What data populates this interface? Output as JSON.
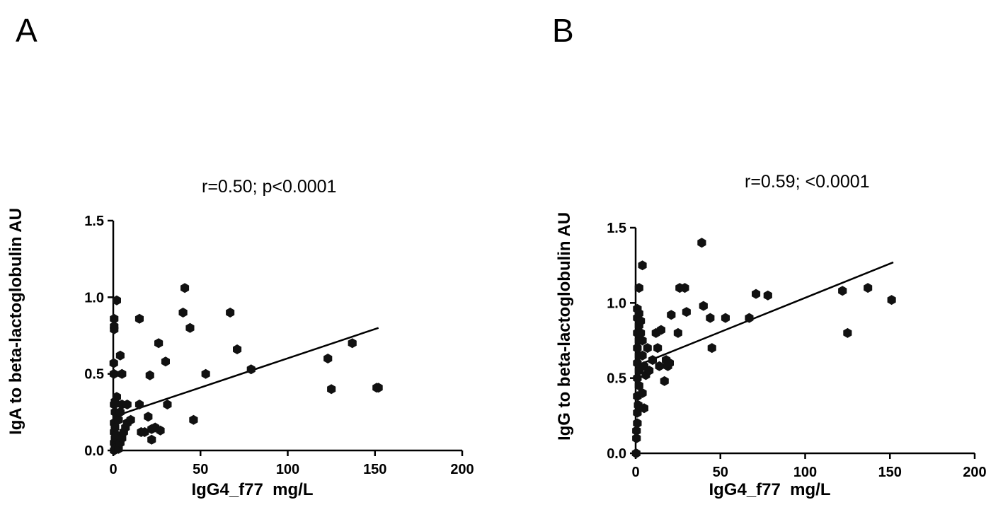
{
  "chart_data": [
    {
      "type": "scatter",
      "panel_label": "A",
      "title": "r=0.50; p<0.0001",
      "xlabel": "IgG4_f77  mg/L",
      "ylabel": "IgA to beta-lactoglobulin AU",
      "xlim": [
        0,
        200
      ],
      "ylim": [
        0,
        1.5
      ],
      "xticks": [
        0,
        50,
        100,
        150,
        200
      ],
      "yticks": [
        0.0,
        0.5,
        1.0,
        1.5
      ],
      "xtick_labels": [
        "0",
        "50",
        "100",
        "150",
        "200"
      ],
      "ytick_labels": [
        "0.0",
        "0.5",
        "1.0",
        "1.5"
      ],
      "regression_line": {
        "x": [
          0,
          152
        ],
        "y": [
          0.22,
          0.8
        ]
      },
      "points": [
        [
          0.5,
          0.86
        ],
        [
          0.5,
          0.81
        ],
        [
          0.5,
          0.79
        ],
        [
          2,
          0.98
        ],
        [
          0.3,
          0.57
        ],
        [
          0.4,
          0.5
        ],
        [
          4,
          0.62
        ],
        [
          5,
          0.5
        ],
        [
          1,
          0.32
        ],
        [
          2,
          0.35
        ],
        [
          0.5,
          0.3
        ],
        [
          1,
          0.25
        ],
        [
          2,
          0.22
        ],
        [
          0.5,
          0.18
        ],
        [
          1,
          0.15
        ],
        [
          0.5,
          0.12
        ],
        [
          2,
          0.1
        ],
        [
          1,
          0.08
        ],
        [
          0.5,
          0.05
        ],
        [
          1,
          0.03
        ],
        [
          2,
          0.02
        ],
        [
          0.5,
          0.0
        ],
        [
          3,
          0.01
        ],
        [
          4,
          0.05
        ],
        [
          5,
          0.08
        ],
        [
          6,
          0.12
        ],
        [
          7,
          0.15
        ],
        [
          3,
          0.2
        ],
        [
          4,
          0.25
        ],
        [
          5,
          0.3
        ],
        [
          8,
          0.3
        ],
        [
          8,
          0.18
        ],
        [
          10,
          0.2
        ],
        [
          15,
          0.3
        ],
        [
          15,
          0.86
        ],
        [
          16,
          0.12
        ],
        [
          18,
          0.12
        ],
        [
          20,
          0.22
        ],
        [
          22,
          0.07
        ],
        [
          22,
          0.14
        ],
        [
          24,
          0.15
        ],
        [
          21,
          0.49
        ],
        [
          26,
          0.7
        ],
        [
          27,
          0.13
        ],
        [
          30,
          0.58
        ],
        [
          31,
          0.3
        ],
        [
          40,
          0.9
        ],
        [
          41,
          1.06
        ],
        [
          44,
          0.8
        ],
        [
          46,
          0.2
        ],
        [
          53,
          0.5
        ],
        [
          67,
          0.9
        ],
        [
          71,
          0.66
        ],
        [
          79,
          0.53
        ],
        [
          123,
          0.6
        ],
        [
          125,
          0.4
        ],
        [
          137,
          0.7
        ],
        [
          151,
          0.41
        ],
        [
          152,
          0.41
        ]
      ]
    },
    {
      "type": "scatter",
      "panel_label": "B",
      "title": "r=0.59; <0.0001",
      "xlabel": "IgG4_f77  mg/L",
      "ylabel": "IgG to beta-lactoglobulin AU",
      "xlim": [
        0,
        200
      ],
      "ylim": [
        0,
        1.5
      ],
      "xticks": [
        0,
        50,
        100,
        150,
        200
      ],
      "yticks": [
        0.0,
        0.5,
        1.0,
        1.5
      ],
      "xtick_labels": [
        "0",
        "50",
        "100",
        "150",
        "200"
      ],
      "ytick_labels": [
        "0.0",
        "0.5",
        "1.0",
        "1.5"
      ],
      "regression_line": {
        "x": [
          0,
          152
        ],
        "y": [
          0.58,
          1.27
        ]
      },
      "points": [
        [
          0.3,
          0.0
        ],
        [
          0.5,
          0.1
        ],
        [
          0.5,
          0.15
        ],
        [
          1,
          0.2
        ],
        [
          1,
          0.27
        ],
        [
          1.5,
          0.32
        ],
        [
          1,
          0.38
        ],
        [
          2,
          0.45
        ],
        [
          1,
          0.5
        ],
        [
          2,
          0.55
        ],
        [
          1,
          0.6
        ],
        [
          2,
          0.65
        ],
        [
          1,
          0.7
        ],
        [
          2,
          0.75
        ],
        [
          1,
          0.8
        ],
        [
          2,
          0.85
        ],
        [
          1,
          0.9
        ],
        [
          2,
          0.93
        ],
        [
          1,
          0.96
        ],
        [
          3,
          0.88
        ],
        [
          3,
          0.8
        ],
        [
          4,
          0.75
        ],
        [
          4,
          0.65
        ],
        [
          5,
          0.58
        ],
        [
          6,
          0.52
        ],
        [
          4,
          0.4
        ],
        [
          5,
          0.3
        ],
        [
          2,
          1.1
        ],
        [
          4,
          1.25
        ],
        [
          7,
          0.7
        ],
        [
          8,
          0.55
        ],
        [
          10,
          0.62
        ],
        [
          12,
          0.8
        ],
        [
          13,
          0.7
        ],
        [
          14,
          0.58
        ],
        [
          15,
          0.82
        ],
        [
          17,
          0.48
        ],
        [
          18,
          0.62
        ],
        [
          19,
          0.58
        ],
        [
          20,
          0.6
        ],
        [
          21,
          0.92
        ],
        [
          25,
          0.8
        ],
        [
          26,
          1.1
        ],
        [
          29,
          1.1
        ],
        [
          30,
          0.94
        ],
        [
          39,
          1.4
        ],
        [
          40,
          0.98
        ],
        [
          44,
          0.9
        ],
        [
          45,
          0.7
        ],
        [
          53,
          0.9
        ],
        [
          67,
          0.9
        ],
        [
          71,
          1.06
        ],
        [
          78,
          1.05
        ],
        [
          122,
          1.08
        ],
        [
          125,
          0.8
        ],
        [
          137,
          1.1
        ],
        [
          151,
          1.02
        ]
      ]
    }
  ]
}
